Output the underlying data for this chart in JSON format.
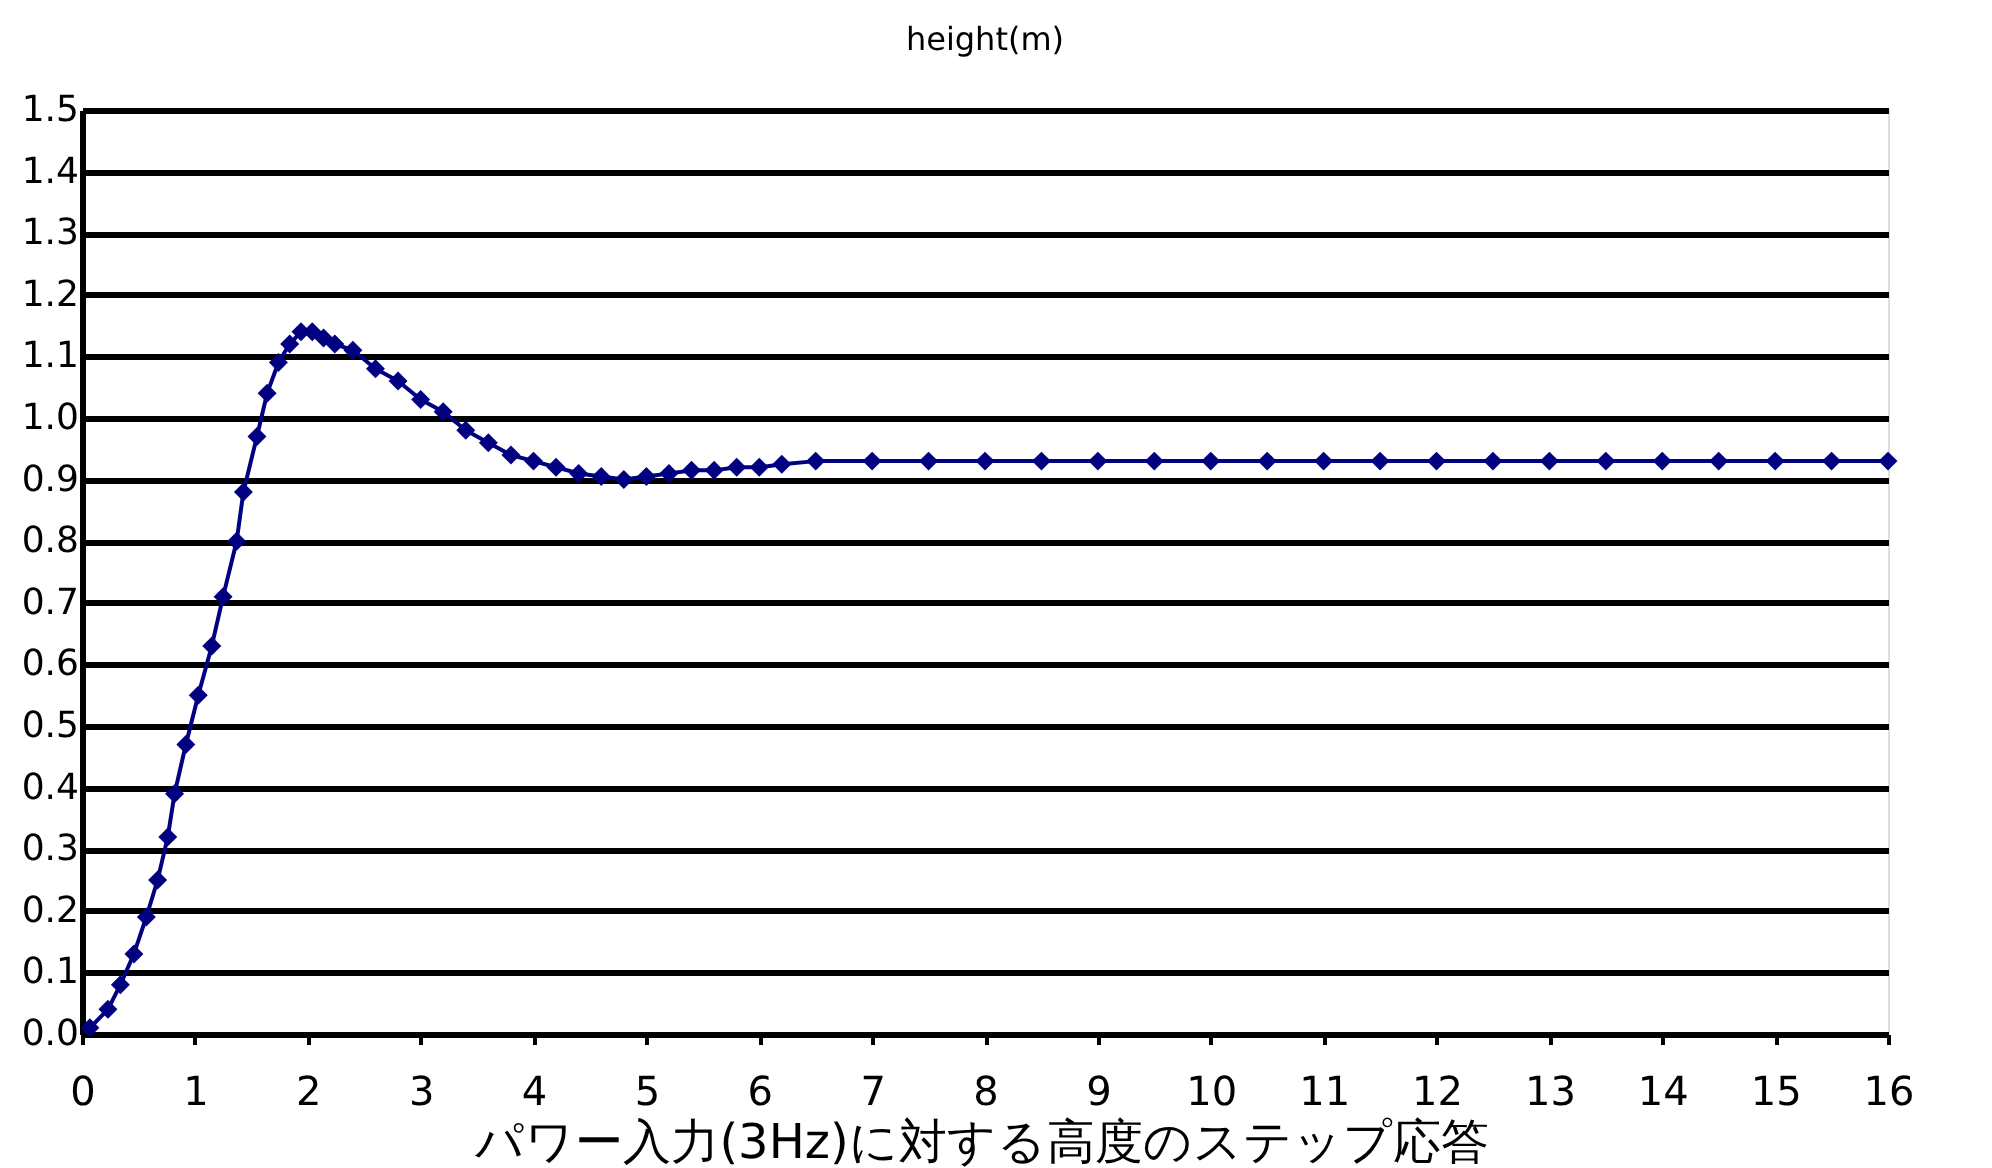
{
  "chart_data": {
    "type": "line",
    "title": "height(m)",
    "annotations": [
      "パワー入力(3Hz)に対する高度のステップ応答"
    ],
    "x": [
      0.07,
      0.23,
      0.34,
      0.46,
      0.57,
      0.67,
      0.76,
      0.82,
      0.92,
      1.03,
      1.15,
      1.25,
      1.37,
      1.43,
      1.55,
      1.64,
      1.74,
      1.84,
      1.94,
      2.04,
      2.14,
      2.24,
      2.4,
      2.6,
      2.8,
      3.0,
      3.2,
      3.4,
      3.6,
      3.8,
      4.0,
      4.2,
      4.4,
      4.6,
      4.8,
      5.0,
      5.2,
      5.4,
      5.6,
      5.8,
      6.0,
      6.2,
      6.5,
      7.0,
      7.5,
      8.0,
      8.5,
      9.0,
      9.5,
      10.0,
      10.5,
      11.0,
      11.5,
      12.0,
      12.5,
      13.0,
      13.5,
      14.0,
      14.5,
      15.0,
      15.5,
      16.0
    ],
    "series": [
      {
        "color": "#000080",
        "values": [
          0.01,
          0.04,
          0.08,
          0.13,
          0.19,
          0.25,
          0.32,
          0.39,
          0.47,
          0.55,
          0.63,
          0.71,
          0.8,
          0.88,
          0.97,
          1.04,
          1.09,
          1.12,
          1.14,
          1.14,
          1.13,
          1.12,
          1.11,
          1.08,
          1.06,
          1.03,
          1.01,
          0.98,
          0.96,
          0.94,
          0.93,
          0.92,
          0.91,
          0.905,
          0.9,
          0.905,
          0.91,
          0.915,
          0.915,
          0.92,
          0.92,
          0.925,
          0.93,
          0.93,
          0.93,
          0.93,
          0.93,
          0.93,
          0.93,
          0.93,
          0.93,
          0.93,
          0.93,
          0.93,
          0.93,
          0.93,
          0.93,
          0.93,
          0.93,
          0.93,
          0.93,
          0.93
        ]
      }
    ],
    "xlim": [
      0,
      16
    ],
    "xticks": [
      0,
      1,
      2,
      3,
      4,
      5,
      6,
      7,
      8,
      9,
      10,
      11,
      12,
      13,
      14,
      15,
      16
    ],
    "ylim": [
      0,
      1.5
    ],
    "yticks": [
      {
        "value": 0,
        "label": "0.0"
      },
      {
        "value": 0.1,
        "label": "0.1"
      },
      {
        "value": 0.2,
        "label": "0.2"
      },
      {
        "value": 0.3,
        "label": "0.3"
      },
      {
        "value": 0.4,
        "label": "0.4"
      },
      {
        "value": 0.5,
        "label": "0.5"
      },
      {
        "value": 0.6,
        "label": "0.6"
      },
      {
        "value": 0.7,
        "label": "0.7"
      },
      {
        "value": 0.8,
        "label": "0.8"
      },
      {
        "value": 0.9,
        "label": "0.9"
      },
      {
        "value": 1.0,
        "label": "1.0"
      },
      {
        "value": 1.1,
        "label": "1.1"
      },
      {
        "value": 1.2,
        "label": "1.2"
      },
      {
        "value": 1.3,
        "label": "1.3"
      },
      {
        "value": 1.4,
        "label": "1.4"
      },
      {
        "value": 1.5,
        "label": "1.5"
      }
    ],
    "grid": "y",
    "marker": "diamond",
    "line_style": "solid"
  }
}
